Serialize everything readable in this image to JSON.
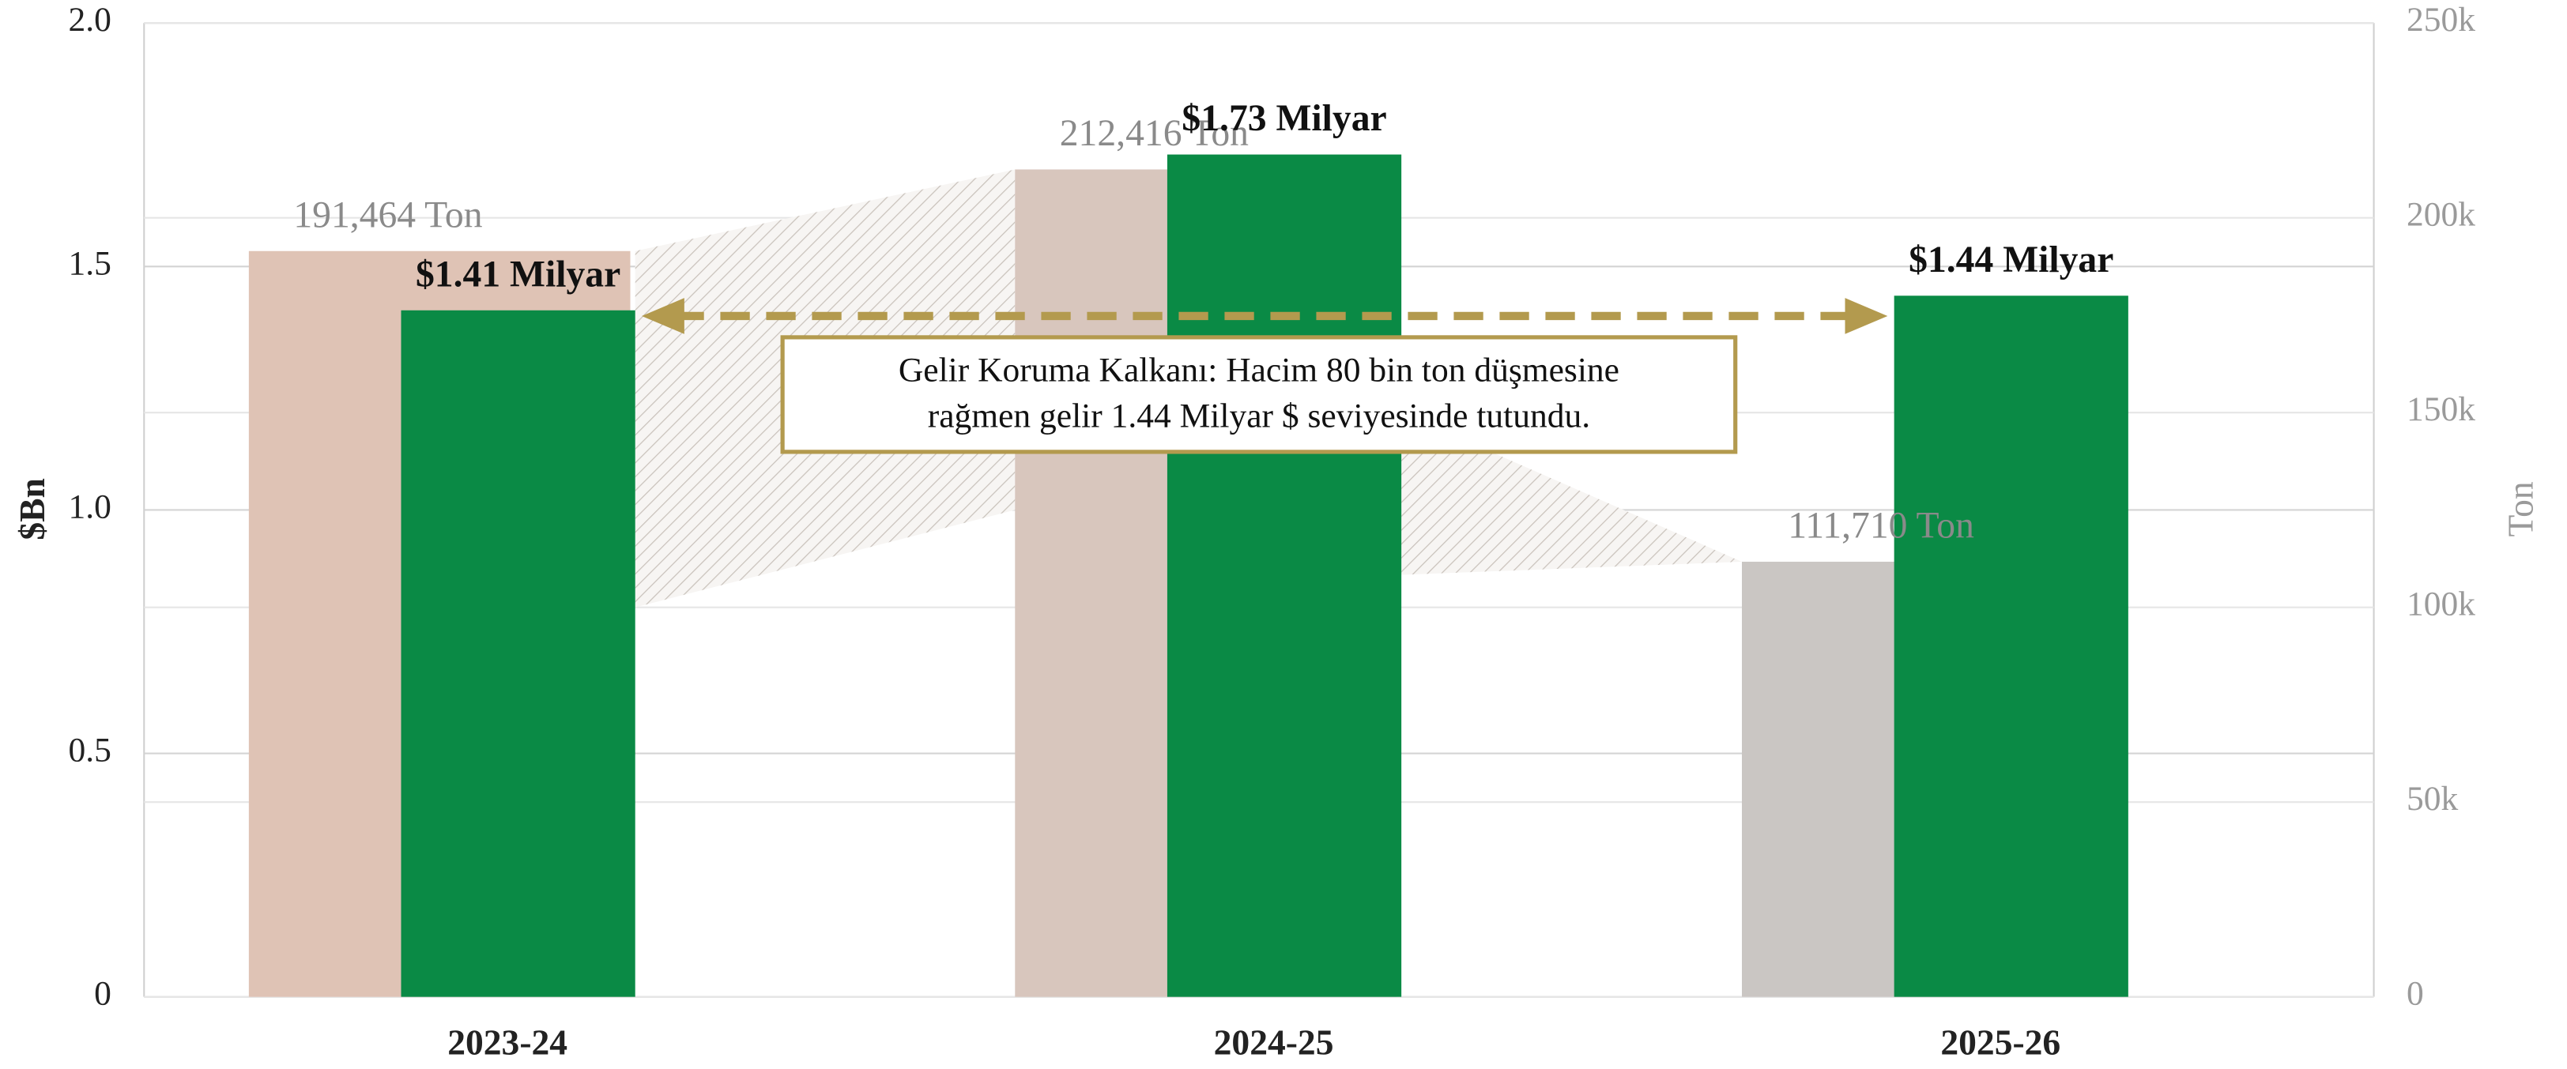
{
  "chart_data": {
    "type": "bar",
    "categories": [
      "2023-24",
      "2024-25",
      "2025-26"
    ],
    "series": [
      {
        "name": "Ton",
        "axis": "y2",
        "colors": [
          "#dfc3b5",
          "#d8c6bd",
          "#cac6c3"
        ],
        "values": [
          191464,
          212416,
          111710
        ],
        "value_labels": [
          "191,464 Ton",
          "212,416 Ton",
          "111,710 Ton"
        ]
      },
      {
        "name": "$Bn",
        "color": "#0a8a45",
        "values": [
          1.41,
          1.73,
          1.44
        ],
        "value_labels": [
          "$1.41 Milyar",
          "$1.73 Milyar",
          "$1.44 Milyar"
        ]
      }
    ],
    "ylabel": "$Bn",
    "y2label": "Ton",
    "ylim": [
      0,
      2.0
    ],
    "yticks": [
      0,
      0.5,
      {
        "value": 1.0,
        "label": "1.0"
      },
      1.5,
      {
        "value": 2.0,
        "label": "2.0"
      }
    ],
    "y2lim": [
      0,
      250000
    ],
    "y2ticks": [
      0,
      {
        "value": 50000,
        "label": "50k"
      },
      {
        "value": 100000,
        "label": "100k"
      },
      {
        "value": 150000,
        "label": "150k"
      },
      {
        "value": 200000,
        "label": "200k"
      },
      {
        "value": 250000,
        "label": "250k"
      }
    ],
    "grid": true,
    "annotation": [
      "Gelir Koruma Kalkanı: Hacim 80 bin ton düşmesine",
      "rağmen gelir 1.44 Milyar $ seviyesinde tutundu."
    ]
  }
}
